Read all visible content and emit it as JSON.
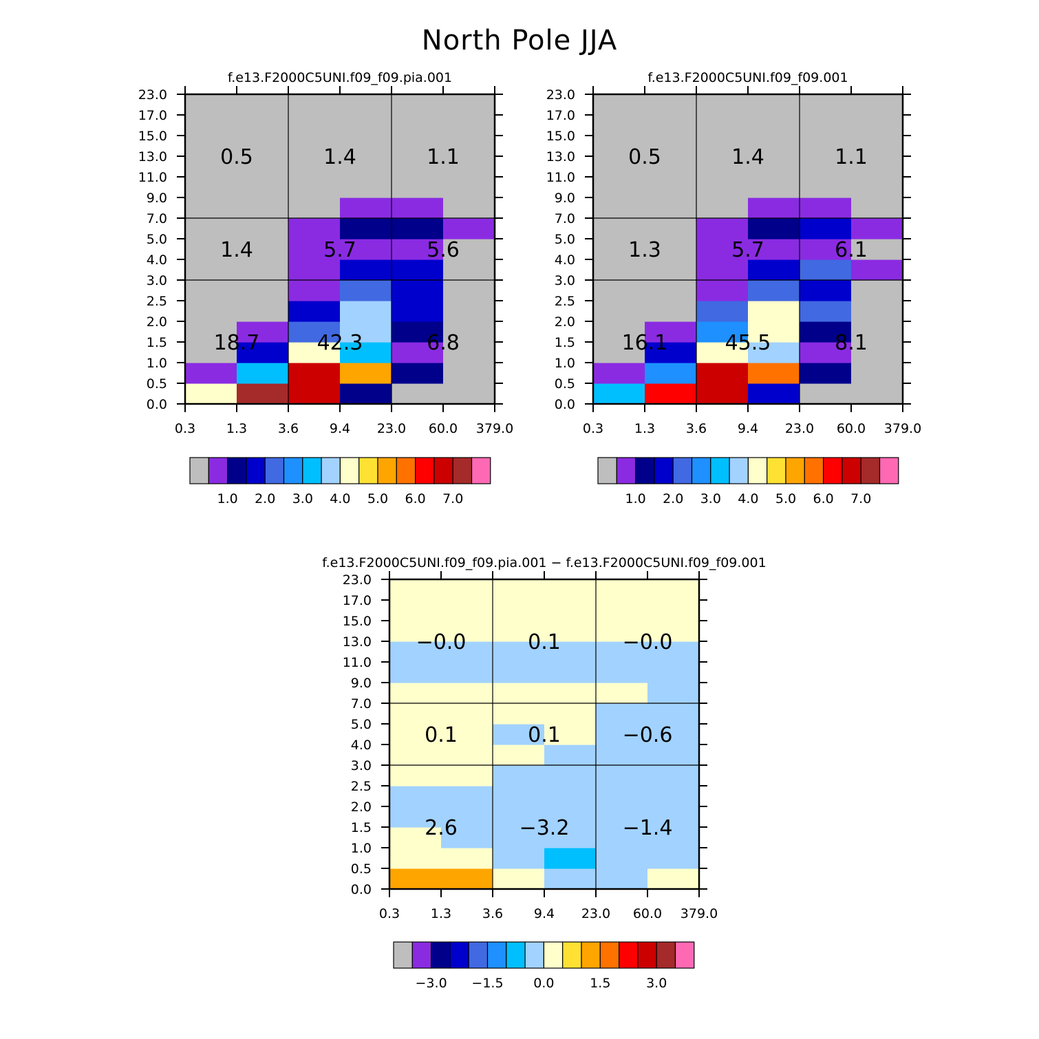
{
  "chart_data": {
    "title": "North Pole JJA",
    "type": "heatmap",
    "x_tick_labels": [
      "0.3",
      "1.3",
      "3.6",
      "9.4",
      "23.0",
      "60.0",
      "379.0"
    ],
    "y_tick_labels": [
      "0.0",
      "0.5",
      "1.0",
      "1.5",
      "2.0",
      "2.5",
      "3.0",
      "4.0",
      "5.0",
      "7.0",
      "9.0",
      "11.0",
      "13.0",
      "15.0",
      "17.0",
      "23.0"
    ],
    "abs_colors": [
      "#BEBEBE",
      "#8A2BE2",
      "#00008B",
      "#0000CD",
      "#4169E1",
      "#1E90FF",
      "#00BFFF",
      "#A2D2FF",
      "#FFFFCC",
      "#FFE134",
      "#FFA500",
      "#FF7200",
      "#FF0000",
      "#CD0000",
      "#A52A2A",
      "#FF69B4"
    ],
    "diff_colors": [
      "#BEBEBE",
      "#8A2BE2",
      "#00008B",
      "#0000CD",
      "#4169E1",
      "#1E90FF",
      "#00BFFF",
      "#A2D2FF",
      "#FFFFCC",
      "#FFE134",
      "#FFA500",
      "#FF7200",
      "#FF0000",
      "#CD0000",
      "#A52A2A",
      "#FF69B4"
    ],
    "panels": [
      {
        "title": "f.e13.F2000C5UNI.f09_f09.pia.001",
        "colorbar": "abs",
        "colorbar_labels": [
          "1.0",
          "2.0",
          "3.0",
          "4.0",
          "5.0",
          "6.0",
          "7.0"
        ],
        "cells": [
          [
            8,
            14,
            13,
            2,
            0,
            0
          ],
          [
            1,
            6,
            13,
            10,
            2,
            0
          ],
          [
            0,
            3,
            8,
            6,
            1,
            0
          ],
          [
            0,
            1,
            4,
            7,
            2,
            0
          ],
          [
            0,
            0,
            3,
            7,
            3,
            0
          ],
          [
            0,
            0,
            1,
            4,
            3,
            0
          ],
          [
            0,
            0,
            1,
            3,
            3,
            0
          ],
          [
            0,
            0,
            1,
            1,
            1,
            0
          ],
          [
            0,
            0,
            1,
            2,
            2,
            1
          ],
          [
            0,
            0,
            0,
            1,
            1,
            0
          ],
          [
            0,
            0,
            0,
            0,
            0,
            0
          ],
          [
            0,
            0,
            0,
            0,
            0,
            0
          ],
          [
            0,
            0,
            0,
            0,
            0,
            0
          ],
          [
            0,
            0,
            0,
            0,
            0,
            0
          ],
          [
            0,
            0,
            0,
            0,
            0,
            0
          ]
        ],
        "summary": [
          {
            "text": "18.7",
            "col": 0,
            "row": 0
          },
          {
            "text": "42.3",
            "col": 1,
            "row": 0
          },
          {
            "text": "6.8",
            "col": 2,
            "row": 0
          },
          {
            "text": "1.4",
            "col": 0,
            "row": 1
          },
          {
            "text": "5.7",
            "col": 1,
            "row": 1
          },
          {
            "text": "5.6",
            "col": 2,
            "row": 1
          },
          {
            "text": "0.5",
            "col": 0,
            "row": 2
          },
          {
            "text": "1.4",
            "col": 1,
            "row": 2
          },
          {
            "text": "1.1",
            "col": 2,
            "row": 2
          }
        ]
      },
      {
        "title": "f.e13.F2000C5UNI.f09_f09.001",
        "colorbar": "abs",
        "colorbar_labels": [
          "1.0",
          "2.0",
          "3.0",
          "4.0",
          "5.0",
          "6.0",
          "7.0"
        ],
        "cells": [
          [
            6,
            12,
            13,
            3,
            0,
            0
          ],
          [
            1,
            5,
            13,
            11,
            2,
            0
          ],
          [
            0,
            3,
            8,
            7,
            1,
            0
          ],
          [
            0,
            1,
            5,
            8,
            2,
            0
          ],
          [
            0,
            0,
            4,
            8,
            4,
            0
          ],
          [
            0,
            0,
            1,
            4,
            3,
            0
          ],
          [
            0,
            0,
            1,
            3,
            4,
            1
          ],
          [
            0,
            0,
            1,
            1,
            1,
            0
          ],
          [
            0,
            0,
            1,
            2,
            3,
            1
          ],
          [
            0,
            0,
            0,
            1,
            1,
            0
          ],
          [
            0,
            0,
            0,
            0,
            0,
            0
          ],
          [
            0,
            0,
            0,
            0,
            0,
            0
          ],
          [
            0,
            0,
            0,
            0,
            0,
            0
          ],
          [
            0,
            0,
            0,
            0,
            0,
            0
          ],
          [
            0,
            0,
            0,
            0,
            0,
            0
          ]
        ],
        "summary": [
          {
            "text": "16.1",
            "col": 0,
            "row": 0
          },
          {
            "text": "45.5",
            "col": 1,
            "row": 0
          },
          {
            "text": "8.1",
            "col": 2,
            "row": 0
          },
          {
            "text": "1.3",
            "col": 0,
            "row": 1
          },
          {
            "text": "5.7",
            "col": 1,
            "row": 1
          },
          {
            "text": "6.1",
            "col": 2,
            "row": 1
          },
          {
            "text": "0.5",
            "col": 0,
            "row": 2
          },
          {
            "text": "1.4",
            "col": 1,
            "row": 2
          },
          {
            "text": "1.1",
            "col": 2,
            "row": 2
          }
        ]
      },
      {
        "title": "f.e13.F2000C5UNI.f09_f09.pia.001 − f.e13.F2000C5UNI.f09_f09.001",
        "colorbar": "diff",
        "colorbar_labels": [
          "−3.0",
          "−1.5",
          "0.0",
          "1.5",
          "3.0"
        ],
        "cells": [
          [
            10,
            10,
            8,
            7,
            7,
            8
          ],
          [
            8,
            8,
            7,
            6,
            7,
            7
          ],
          [
            8,
            7,
            7,
            7,
            7,
            7
          ],
          [
            7,
            7,
            7,
            7,
            7,
            7
          ],
          [
            7,
            7,
            7,
            7,
            7,
            7
          ],
          [
            8,
            8,
            7,
            7,
            7,
            7
          ],
          [
            8,
            8,
            8,
            7,
            7,
            7
          ],
          [
            8,
            8,
            7,
            8,
            7,
            7
          ],
          [
            8,
            8,
            8,
            8,
            7,
            7
          ],
          [
            8,
            8,
            8,
            8,
            8,
            7
          ],
          [
            7,
            7,
            7,
            7,
            7,
            7
          ],
          [
            7,
            7,
            7,
            7,
            7,
            7
          ],
          [
            8,
            8,
            8,
            8,
            8,
            8
          ],
          [
            8,
            8,
            8,
            8,
            8,
            8
          ],
          [
            8,
            8,
            8,
            8,
            8,
            8
          ]
        ],
        "summary": [
          {
            "text": "2.6",
            "col": 0,
            "row": 0
          },
          {
            "text": "−3.2",
            "col": 1,
            "row": 0
          },
          {
            "text": "−1.4",
            "col": 2,
            "row": 0
          },
          {
            "text": "0.1",
            "col": 0,
            "row": 1
          },
          {
            "text": "0.1",
            "col": 1,
            "row": 1
          },
          {
            "text": "−0.6",
            "col": 2,
            "row": 1
          },
          {
            "text": "−0.0",
            "col": 0,
            "row": 2
          },
          {
            "text": "0.1",
            "col": 1,
            "row": 2
          },
          {
            "text": "−0.0",
            "col": 2,
            "row": 2
          }
        ]
      }
    ]
  }
}
